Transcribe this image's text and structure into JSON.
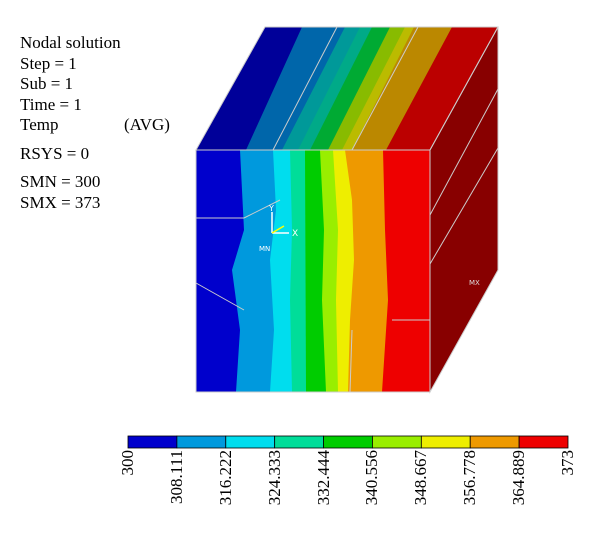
{
  "info": {
    "title": "Nodal solution",
    "step": "Step = 1",
    "sub": "Sub = 1",
    "time": "Time = 1",
    "temp": "Temp",
    "avg": "(AVG)",
    "rsys": "RSYS = 0",
    "smn": "SMN = 300",
    "smx": "SMX = 373"
  },
  "markers": {
    "mn": "MN",
    "mx": "MX",
    "axis_x": "X",
    "axis_y": "Y"
  },
  "legend": {
    "values": [
      "300",
      "308.111",
      "316.222",
      "324.333",
      "332.444",
      "340.556",
      "348.667",
      "356.778",
      "364.889",
      "373"
    ],
    "colors": [
      "#0000cc",
      "#0099dd",
      "#00ddee",
      "#00dd99",
      "#00cc00",
      "#99ee00",
      "#eeee00",
      "#ee9900",
      "#ee0000"
    ]
  },
  "chart_data": {
    "type": "contour",
    "variable": "Temp",
    "min": 300,
    "max": 373,
    "levels": [
      300,
      308.111,
      316.222,
      324.333,
      332.444,
      340.556,
      348.667,
      356.778,
      364.889,
      373
    ],
    "colors": [
      "#0000cc",
      "#0099dd",
      "#00ddee",
      "#00dd99",
      "#00cc00",
      "#99ee00",
      "#eeee00",
      "#ee9900",
      "#ee0000"
    ]
  }
}
